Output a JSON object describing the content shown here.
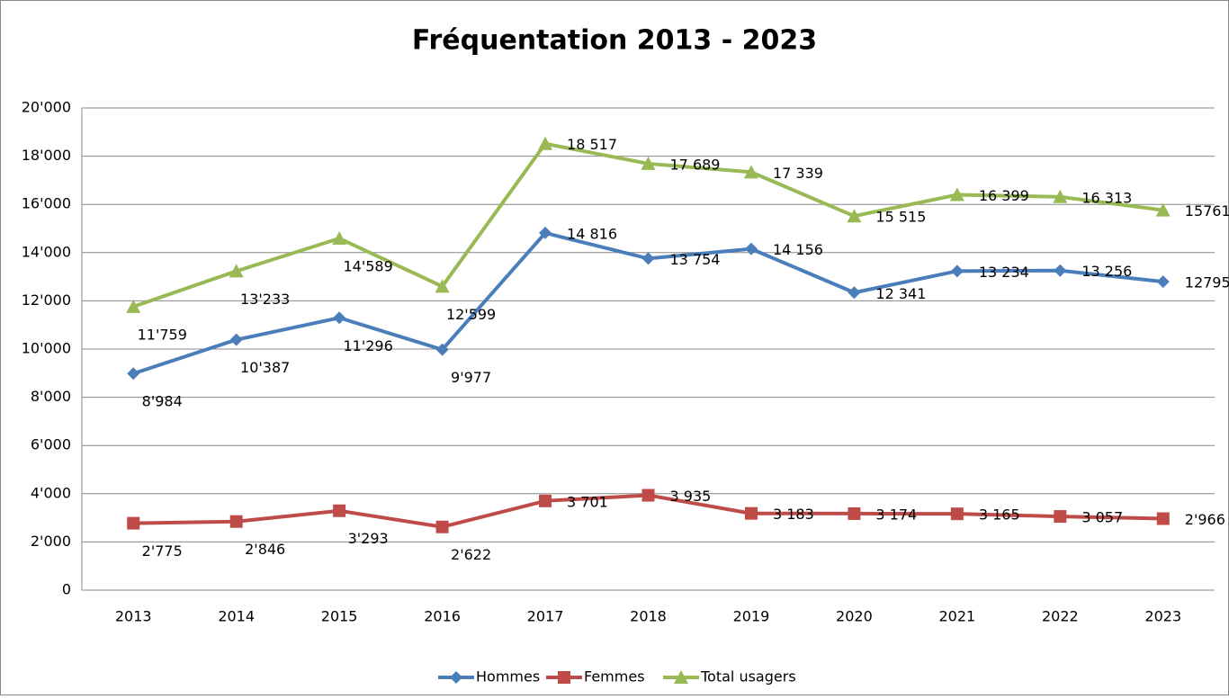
{
  "chart_data": {
    "type": "line",
    "title": "Fréquentation 2013 - 2023",
    "categories": [
      "2013",
      "2014",
      "2015",
      "2016",
      "2017",
      "2018",
      "2019",
      "2020",
      "2021",
      "2022",
      "2023"
    ],
    "series": [
      {
        "name": "Hommes",
        "color": "#4a7ebb",
        "marker": "diamond",
        "values": [
          8984,
          10387,
          11296,
          9977,
          14816,
          13754,
          14156,
          12341,
          13234,
          13256,
          12795
        ],
        "value_labels": [
          "8'984",
          "10'387",
          "11'296",
          "9'977",
          "14 816",
          "13 754",
          "14 156",
          "12 341",
          "13 234",
          "13 256",
          "12795"
        ]
      },
      {
        "name": "Femmes",
        "color": "#be4b48",
        "marker": "square",
        "values": [
          2775,
          2846,
          3293,
          2622,
          3701,
          3935,
          3183,
          3174,
          3165,
          3057,
          2966
        ],
        "value_labels": [
          "2'775",
          "2'846",
          "3'293",
          "2'622",
          "3 701",
          "3 935",
          "3 183",
          "3 174",
          "3 165",
          "3 057",
          "2'966"
        ]
      },
      {
        "name": "Total usagers",
        "color": "#98b954",
        "marker": "triangle",
        "values": [
          11759,
          13233,
          14589,
          12599,
          18517,
          17689,
          17339,
          15515,
          16399,
          16313,
          15761
        ],
        "value_labels": [
          "11'759",
          "13'233",
          "14'589",
          "12'599",
          "18 517",
          "17 689",
          "17 339",
          "15 515",
          "16 399",
          "16 313",
          "15761"
        ]
      }
    ],
    "ylim": [
      0,
      20000
    ],
    "yticks": [
      0,
      {
        "value": 2000,
        "label": "2'000"
      },
      {
        "value": 4000,
        "label": "4'000"
      },
      {
        "value": 6000,
        "label": "6'000"
      },
      {
        "value": 8000,
        "label": "8'000"
      },
      {
        "value": 10000,
        "label": "10'000"
      },
      {
        "value": 12000,
        "label": "12'000"
      },
      {
        "value": 14000,
        "label": "14'000"
      },
      {
        "value": 16000,
        "label": "16'000"
      },
      {
        "value": 18000,
        "label": "18'000"
      },
      {
        "value": 20000,
        "label": "20'000"
      }
    ],
    "grid": true,
    "legend": "bottom"
  }
}
